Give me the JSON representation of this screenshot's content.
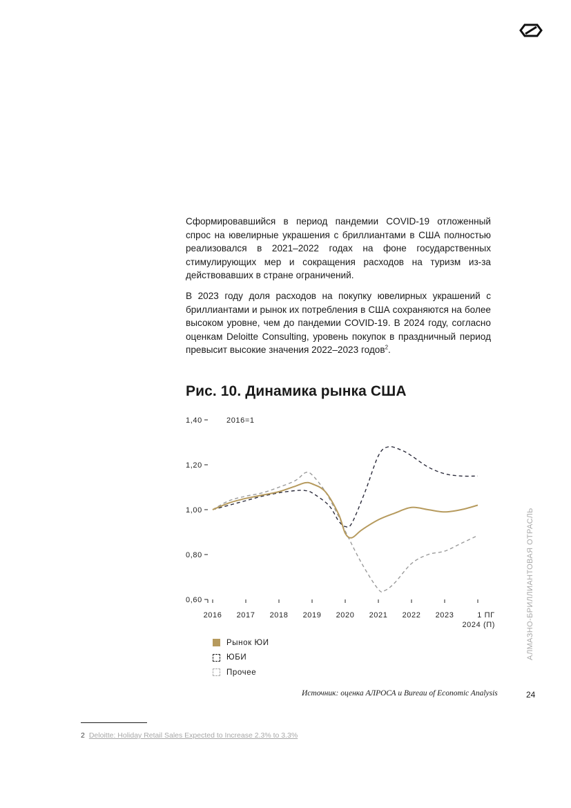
{
  "body": {
    "paragraph_1": "Сформировавшийся в период пандемии COVID-19 отложенный спрос на ювелирные украшения с бриллиантами в США полностью реализовался в 2021–2022 годах на фоне государственных стимулирующих мер и сокращения расходов на туризм из-за действовавших в стране ограничений.",
    "paragraph_2": "В 2023 году доля расходов на покупку ювелирных украшений с бриллиантами и рынок их потребления в США сохраняются на более высоком уровне, чем до пандемии COVID-19. В 2024 году, согласно оценкам Deloitte Consulting, уровень покупок в праздничный период превысит высокие значения 2022–2023 годов",
    "paragraph_2_footnote_ref": "2",
    "paragraph_2_end": "."
  },
  "figure": {
    "title": "Рис. 10. Динамика рынка США",
    "source": "Источник: оценка АЛРОСА и Bureau of Economic Analysis"
  },
  "chart_data": {
    "type": "line",
    "title": "Рис. 10. Динамика рынка США",
    "annotation": "2016=1",
    "ylim": [
      0.6,
      1.4
    ],
    "y_ticks": [
      0.6,
      0.8,
      1.0,
      1.2,
      1.4
    ],
    "y_tick_labels": [
      "0,60",
      "0,80",
      "1,00",
      "1,20",
      "1,40"
    ],
    "x_tick_labels": [
      "2016",
      "2017",
      "2018",
      "2019",
      "2020",
      "2021",
      "2022",
      "2023",
      "1 ПГ\n2024 (П)"
    ],
    "series": [
      {
        "name": "Рынок ЮИ",
        "color": "#b69a5d",
        "style": "solid",
        "points": [
          [
            0,
            1.0
          ],
          [
            0.5,
            1.03
          ],
          [
            1.0,
            1.05
          ],
          [
            1.5,
            1.065
          ],
          [
            2.0,
            1.08
          ],
          [
            2.5,
            1.105
          ],
          [
            2.8,
            1.12
          ],
          [
            3.0,
            1.115
          ],
          [
            3.4,
            1.08
          ],
          [
            3.8,
            0.98
          ],
          [
            4.0,
            0.895
          ],
          [
            4.2,
            0.875
          ],
          [
            4.5,
            0.91
          ],
          [
            5.0,
            0.955
          ],
          [
            5.5,
            0.985
          ],
          [
            6.0,
            1.01
          ],
          [
            6.5,
            1.0
          ],
          [
            7.0,
            0.99
          ],
          [
            7.5,
            1.0
          ],
          [
            8.0,
            1.02
          ]
        ]
      },
      {
        "name": "ЮБИ",
        "color": "#2a2a3a",
        "style": "dashed",
        "points": [
          [
            0,
            1.0
          ],
          [
            0.5,
            1.02
          ],
          [
            1.0,
            1.04
          ],
          [
            1.5,
            1.06
          ],
          [
            2.0,
            1.075
          ],
          [
            2.5,
            1.085
          ],
          [
            2.8,
            1.085
          ],
          [
            3.0,
            1.075
          ],
          [
            3.5,
            1.02
          ],
          [
            3.8,
            0.95
          ],
          [
            4.0,
            0.925
          ],
          [
            4.2,
            0.94
          ],
          [
            4.6,
            1.08
          ],
          [
            5.0,
            1.24
          ],
          [
            5.3,
            1.28
          ],
          [
            5.7,
            1.265
          ],
          [
            6.0,
            1.24
          ],
          [
            6.5,
            1.19
          ],
          [
            7.0,
            1.16
          ],
          [
            7.5,
            1.15
          ],
          [
            8.0,
            1.15
          ]
        ]
      },
      {
        "name": "Прочее",
        "color": "#9a9a9a",
        "style": "dashed",
        "points": [
          [
            0,
            1.0
          ],
          [
            0.5,
            1.04
          ],
          [
            1.0,
            1.06
          ],
          [
            1.5,
            1.075
          ],
          [
            2.0,
            1.1
          ],
          [
            2.5,
            1.13
          ],
          [
            2.8,
            1.165
          ],
          [
            3.0,
            1.155
          ],
          [
            3.4,
            1.08
          ],
          [
            3.8,
            0.97
          ],
          [
            4.0,
            0.905
          ],
          [
            4.5,
            0.76
          ],
          [
            5.0,
            0.645
          ],
          [
            5.2,
            0.64
          ],
          [
            5.5,
            0.675
          ],
          [
            6.0,
            0.76
          ],
          [
            6.5,
            0.8
          ],
          [
            7.0,
            0.815
          ],
          [
            7.5,
            0.85
          ],
          [
            8.0,
            0.885
          ]
        ]
      }
    ],
    "legend": [
      "Рынок ЮИ",
      "ЮБИ",
      "Прочее"
    ],
    "grid": false
  },
  "side_label": "АЛМАЗНО-БРИЛЛИАНТОВАЯ ОТРАСЛЬ",
  "page_number": "24",
  "footnote": {
    "number": "2",
    "link_text": "Deloitte: Holiday Retail Sales Expected to Increase 2.3% to 3.3%"
  },
  "logo": {
    "icon": "alrosa-logo-icon"
  }
}
